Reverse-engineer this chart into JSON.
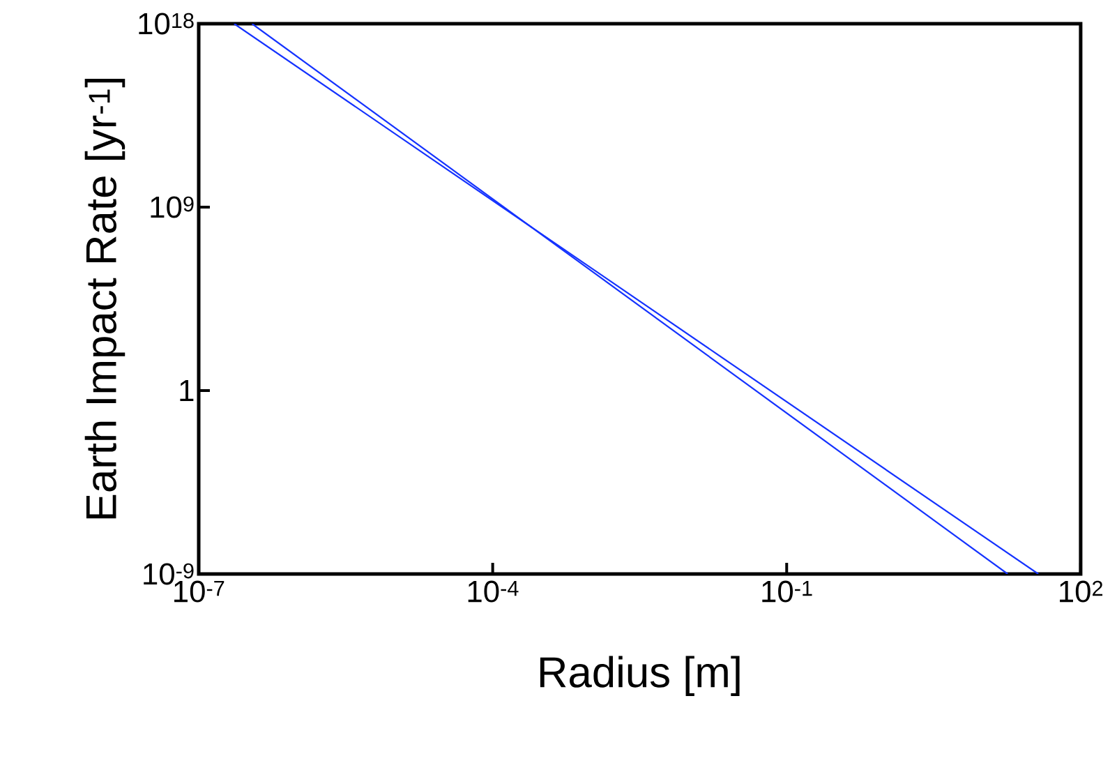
{
  "chart_data": {
    "type": "line",
    "xlabel": "Radius [m]",
    "ylabel": "Earth Impact Rate [yr$^{-1}$]",
    "log": "xy",
    "xlim": [
      1e-07,
      100
    ],
    "ylim": [
      1e-09,
      1e+18
    ],
    "xticks": [
      {
        "value": 1e-07,
        "label": "10$^{-7}$"
      },
      {
        "value": 0.0001,
        "label": "10$^{-4}$"
      },
      {
        "value": 0.1,
        "label": "10$^{-1}$"
      },
      {
        "value": 100,
        "label": "10$^{2}$"
      }
    ],
    "yticks": [
      {
        "value": 1e-09,
        "label": "10$^{-9}$"
      },
      1,
      {
        "value": 1000000000.0,
        "label": "10$^{9}$"
      },
      {
        "value": 1e+18,
        "label": "10$^{18}$"
      }
    ],
    "series": [
      {
        "color": "#1432ff",
        "x": [
          2.3e-07,
          37
        ],
        "values": [
          1e+18,
          1e-09
        ]
      },
      {
        "color": "#1432ff",
        "x": [
          3.5e-07,
          18
        ],
        "values": [
          1e+18,
          1e-09
        ]
      }
    ]
  }
}
